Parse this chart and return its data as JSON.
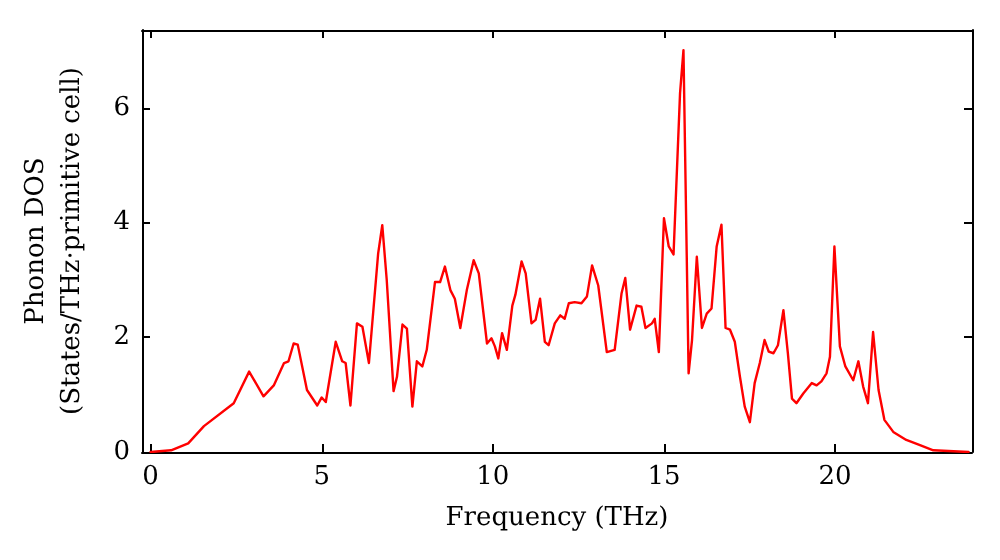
{
  "chart_data": {
    "type": "line",
    "xlabel": "Frequency (THz)",
    "ylabel": "Phonon DOS\n(States/THz·primitive cell)",
    "xlim": [
      -0.25,
      24
    ],
    "ylim": [
      0,
      7.35
    ],
    "xticks": [
      0,
      5,
      10,
      15,
      20
    ],
    "yticks": [
      0,
      2,
      4,
      6
    ],
    "marker": "none",
    "line_style": "solid",
    "series": [
      {
        "color": "#ff0000",
        "x": [
          0,
          0.6,
          1.1,
          1.56,
          2.43,
          2.88,
          3.3,
          3.6,
          3.9,
          4.03,
          4.18,
          4.3,
          4.57,
          4.87,
          5.0,
          5.12,
          5.41,
          5.6,
          5.7,
          5.84,
          6.03,
          6.19,
          6.38,
          6.65,
          6.77,
          6.9,
          7.1,
          7.2,
          7.36,
          7.49,
          7.65,
          7.78,
          7.94,
          8.07,
          8.31,
          8.46,
          8.6,
          8.76,
          8.89,
          9.05,
          9.24,
          9.44,
          9.59,
          9.83,
          9.96,
          10.06,
          10.16,
          10.27,
          10.41,
          10.57,
          10.66,
          10.84,
          10.96,
          11.13,
          11.25,
          11.38,
          11.52,
          11.63,
          11.81,
          11.97,
          12.1,
          12.22,
          12.39,
          12.59,
          12.75,
          12.9,
          13.08,
          13.33,
          13.56,
          13.76,
          13.87,
          14.01,
          14.2,
          14.34,
          14.46,
          14.65,
          14.73,
          14.85,
          15.0,
          15.14,
          15.28,
          15.47,
          15.57,
          15.72,
          15.82,
          15.96,
          16.11,
          16.25,
          16.39,
          16.54,
          16.68,
          16.8,
          16.93,
          17.07,
          17.22,
          17.36,
          17.51,
          17.65,
          17.8,
          17.94,
          18.06,
          18.2,
          18.33,
          18.49,
          18.62,
          18.74,
          18.87,
          19.07,
          19.32,
          19.46,
          19.6,
          19.75,
          19.85,
          19.98,
          20.14,
          20.3,
          20.53,
          20.68,
          20.82,
          20.96,
          21.11,
          21.27,
          21.44,
          21.7,
          22.08,
          22.48,
          22.87,
          23.9
        ],
        "values": [
          0,
          0.03,
          0.15,
          0.45,
          0.85,
          1.4,
          0.97,
          1.16,
          1.55,
          1.58,
          1.89,
          1.87,
          1.08,
          0.81,
          0.95,
          0.87,
          1.92,
          1.58,
          1.55,
          0.81,
          2.24,
          2.18,
          1.55,
          3.46,
          3.95,
          3.0,
          1.06,
          1.31,
          2.22,
          2.15,
          0.79,
          1.58,
          1.49,
          1.78,
          2.96,
          2.96,
          3.23,
          2.82,
          2.67,
          2.16,
          2.82,
          3.34,
          3.11,
          1.89,
          1.98,
          1.84,
          1.63,
          2.07,
          1.78,
          2.55,
          2.74,
          3.32,
          3.11,
          2.24,
          2.3,
          2.67,
          1.92,
          1.86,
          2.24,
          2.38,
          2.32,
          2.59,
          2.61,
          2.59,
          2.71,
          3.25,
          2.9,
          1.74,
          1.78,
          2.76,
          3.03,
          2.13,
          2.55,
          2.53,
          2.16,
          2.24,
          2.32,
          1.74,
          4.07,
          3.58,
          3.44,
          6.25,
          7.0,
          1.37,
          1.95,
          3.4,
          2.16,
          2.41,
          2.5,
          3.58,
          3.96,
          2.16,
          2.13,
          1.92,
          1.31,
          0.79,
          0.52,
          1.2,
          1.55,
          1.95,
          1.75,
          1.72,
          1.86,
          2.47,
          1.72,
          0.93,
          0.85,
          1.02,
          1.2,
          1.16,
          1.23,
          1.37,
          1.66,
          3.58,
          1.84,
          1.49,
          1.25,
          1.58,
          1.14,
          0.85,
          2.09,
          1.08,
          0.56,
          0.35,
          0.21,
          0.12,
          0.03,
          0
        ]
      }
    ]
  }
}
